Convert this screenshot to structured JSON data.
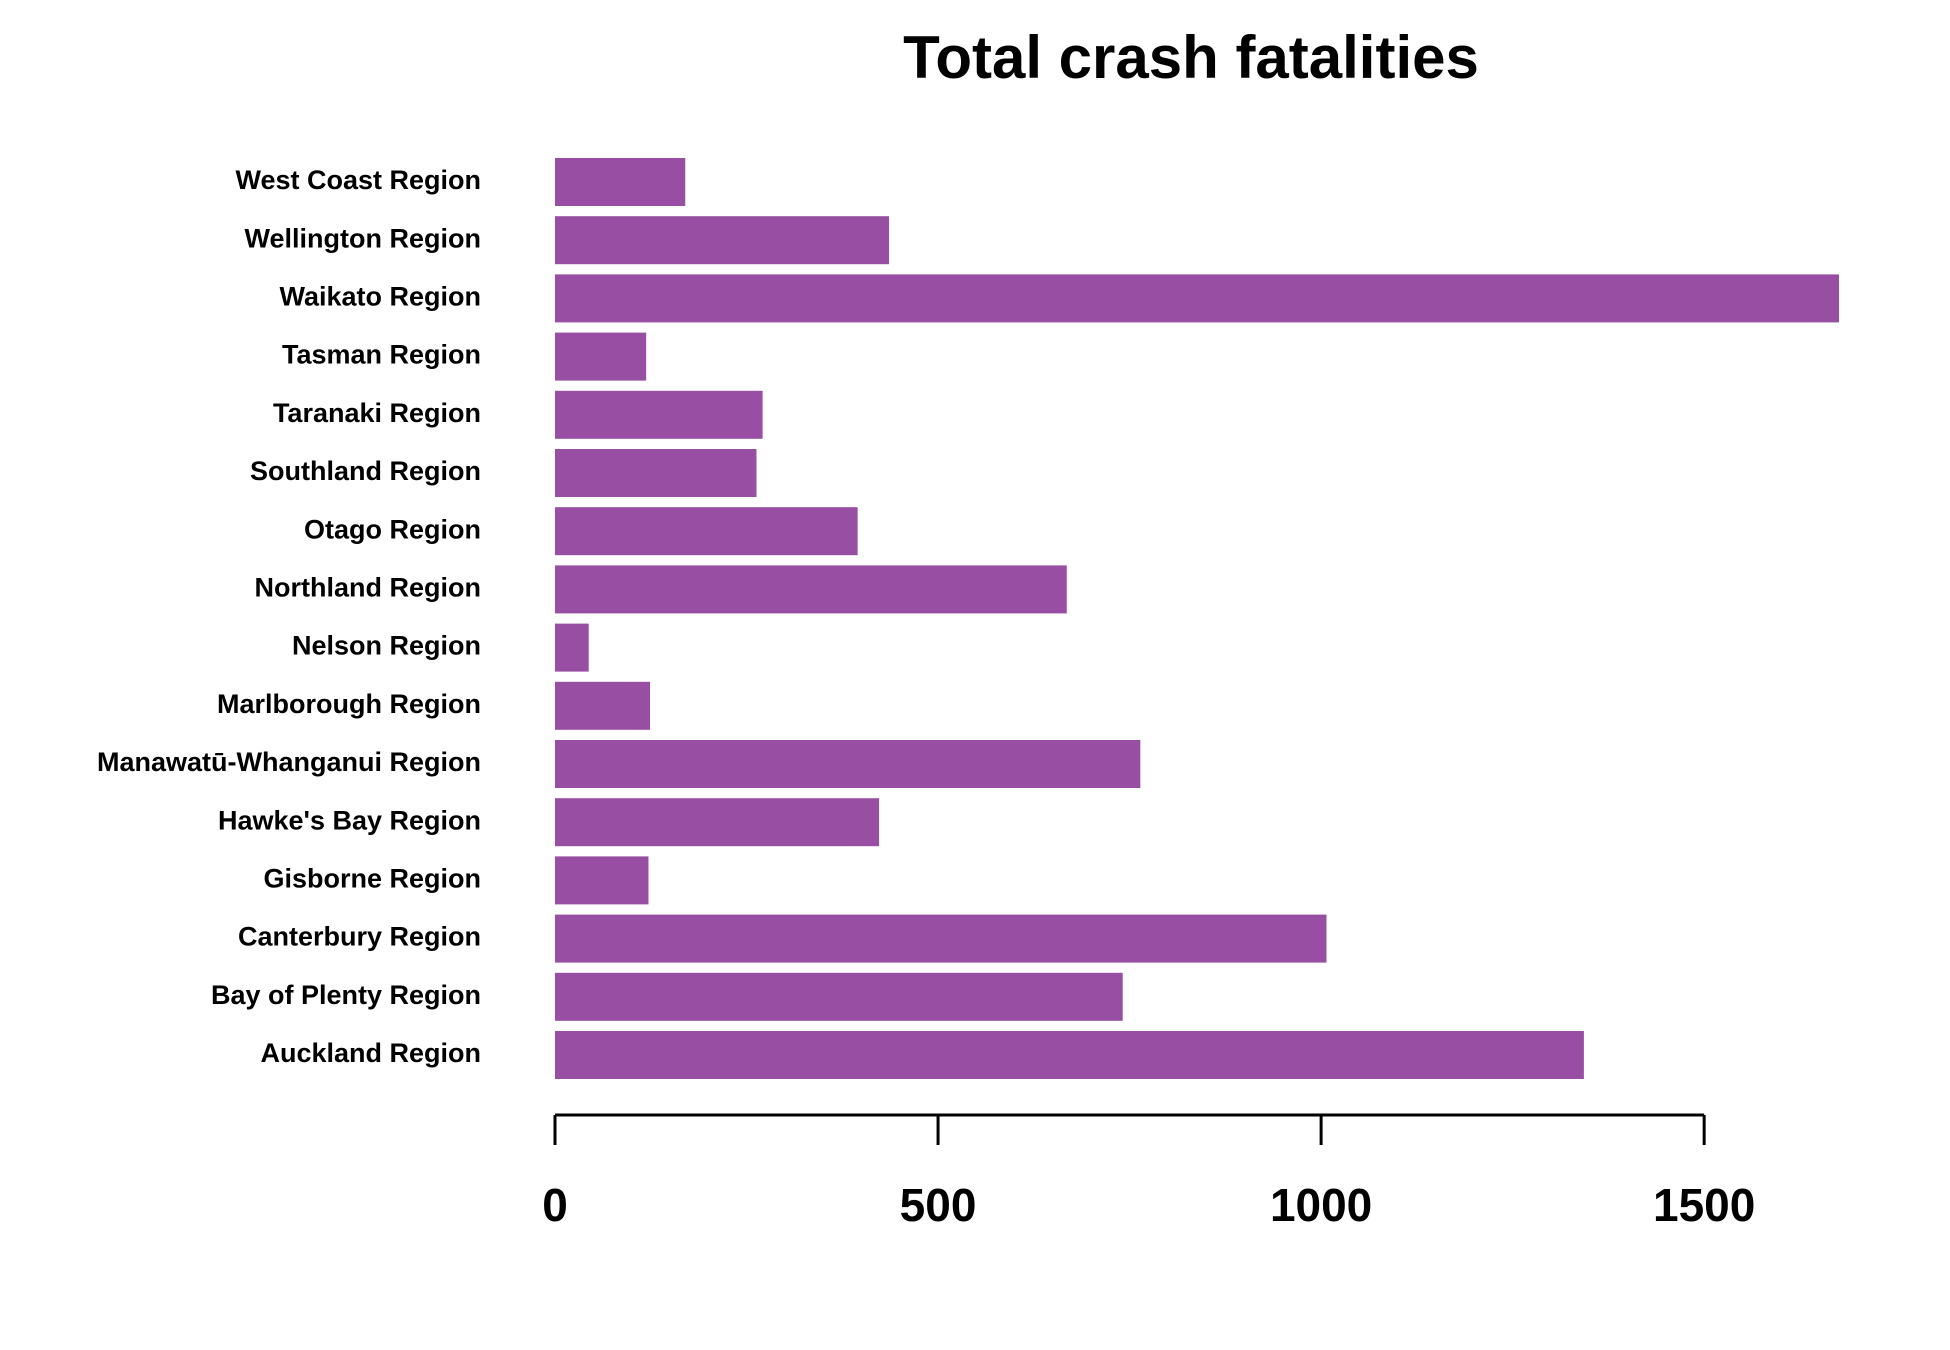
{
  "chart_data": {
    "type": "barh",
    "title": "Total crash fatalities",
    "categories": [
      "Auckland Region",
      "Bay of Plenty Region",
      "Canterbury Region",
      "Gisborne Region",
      "Hawke's Bay Region",
      "Manawatū-Whanganui Region",
      "Marlborough Region",
      "Nelson Region",
      "Northland Region",
      "Otago Region",
      "Southland Region",
      "Taranaki Region",
      "Tasman Region",
      "Waikato Region",
      "Wellington Region",
      "West Coast Region"
    ],
    "values": [
      1343,
      741,
      1007,
      122,
      423,
      764,
      124,
      44,
      668,
      395,
      263,
      271,
      119,
      1676,
      436,
      170
    ],
    "color": "#984ea3",
    "xlim": [
      0,
      1676
    ],
    "xticks": [
      0,
      500,
      1000,
      1500
    ]
  }
}
